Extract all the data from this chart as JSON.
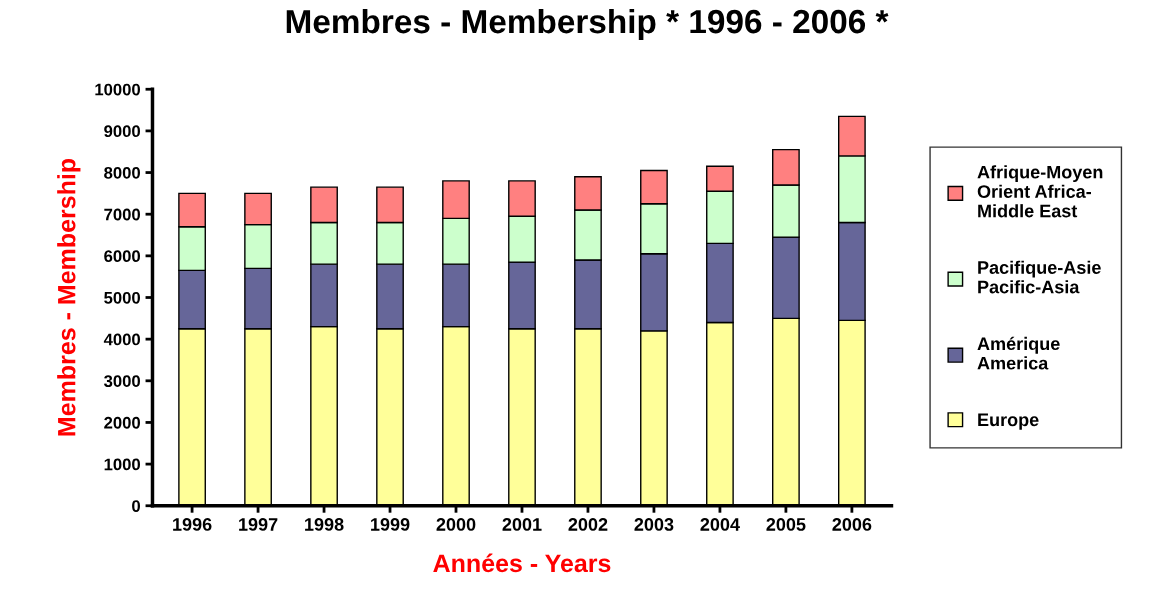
{
  "chart_data": {
    "type": "bar",
    "stacked": true,
    "title": "Membres - Membership * 1996 - 2006 *",
    "xlabel": "Années - Years",
    "ylabel": "Membres - Membership",
    "categories": [
      "1996",
      "1997",
      "1998",
      "1999",
      "2000",
      "2001",
      "2002",
      "2003",
      "2004",
      "2005",
      "2006"
    ],
    "series": [
      {
        "name": "Europe",
        "color": "#ffff99",
        "values": [
          4250,
          4250,
          4300,
          4250,
          4300,
          4250,
          4250,
          4200,
          4400,
          4500,
          4450
        ]
      },
      {
        "name": "Amérique\nAmerica",
        "color": "#666699",
        "values": [
          1400,
          1450,
          1500,
          1550,
          1500,
          1600,
          1650,
          1850,
          1900,
          1950,
          2350
        ]
      },
      {
        "name": "Pacifique-Asie\nPacific-Asia",
        "color": "#ccffcc",
        "values": [
          1050,
          1050,
          1000,
          1000,
          1100,
          1100,
          1200,
          1200,
          1250,
          1250,
          1600
        ]
      },
      {
        "name": "Afrique-Moyen\nOrient Africa-\nMiddle East",
        "color": "#ff8080",
        "values": [
          800,
          750,
          850,
          850,
          900,
          850,
          800,
          800,
          600,
          850,
          950
        ]
      }
    ],
    "ylim": [
      0,
      10000
    ],
    "yticks": [
      0,
      1000,
      2000,
      3000,
      4000,
      5000,
      6000,
      7000,
      8000,
      9000,
      10000
    ],
    "grid": false,
    "legend": "right"
  }
}
